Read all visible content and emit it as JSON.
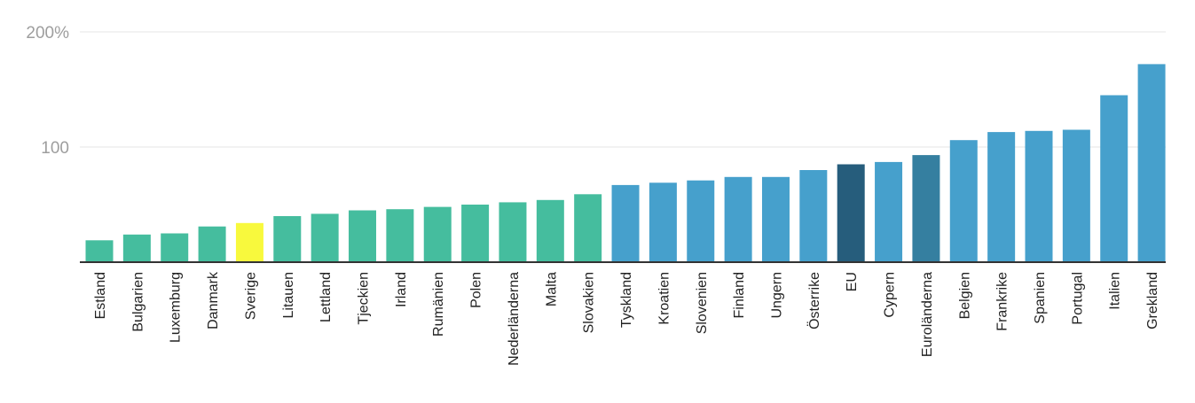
{
  "chart_data": {
    "type": "bar",
    "title": "",
    "xlabel": "",
    "ylabel": "",
    "ylim": [
      0,
      200
    ],
    "grid": true,
    "y_ticks": [
      {
        "value": 100,
        "label": "100"
      },
      {
        "value": 200,
        "label": "200%"
      }
    ],
    "categories": [
      "Estland",
      "Bulgarien",
      "Luxemburg",
      "Danmark",
      "Sverige",
      "Litauen",
      "Lettland",
      "Tjeckien",
      "Irland",
      "Rumänien",
      "Polen",
      "Nederländerna",
      "Malta",
      "Slovakien",
      "Tyskland",
      "Kroatien",
      "Slovenien",
      "Finland",
      "Ungern",
      "Österrike",
      "EU",
      "Cypern",
      "Euroländerna",
      "Belgien",
      "Frankrike",
      "Spanien",
      "Portugal",
      "Italien",
      "Grekland"
    ],
    "values": [
      19,
      24,
      25,
      31,
      34,
      40,
      42,
      45,
      46,
      48,
      50,
      52,
      54,
      59,
      67,
      69,
      71,
      74,
      74,
      80,
      85,
      87,
      93,
      106,
      113,
      114,
      115,
      145,
      172
    ],
    "bar_colors": [
      "#45bd9e",
      "#45bd9e",
      "#45bd9e",
      "#45bd9e",
      "#f8f93d",
      "#45bd9e",
      "#45bd9e",
      "#45bd9e",
      "#45bd9e",
      "#45bd9e",
      "#45bd9e",
      "#45bd9e",
      "#45bd9e",
      "#45bd9e",
      "#46a0cc",
      "#46a0cc",
      "#46a0cc",
      "#46a0cc",
      "#46a0cc",
      "#46a0cc",
      "#265d7c",
      "#46a0cc",
      "#357fa0",
      "#46a0cc",
      "#46a0cc",
      "#46a0cc",
      "#46a0cc",
      "#46a0cc",
      "#46a0cc"
    ]
  }
}
